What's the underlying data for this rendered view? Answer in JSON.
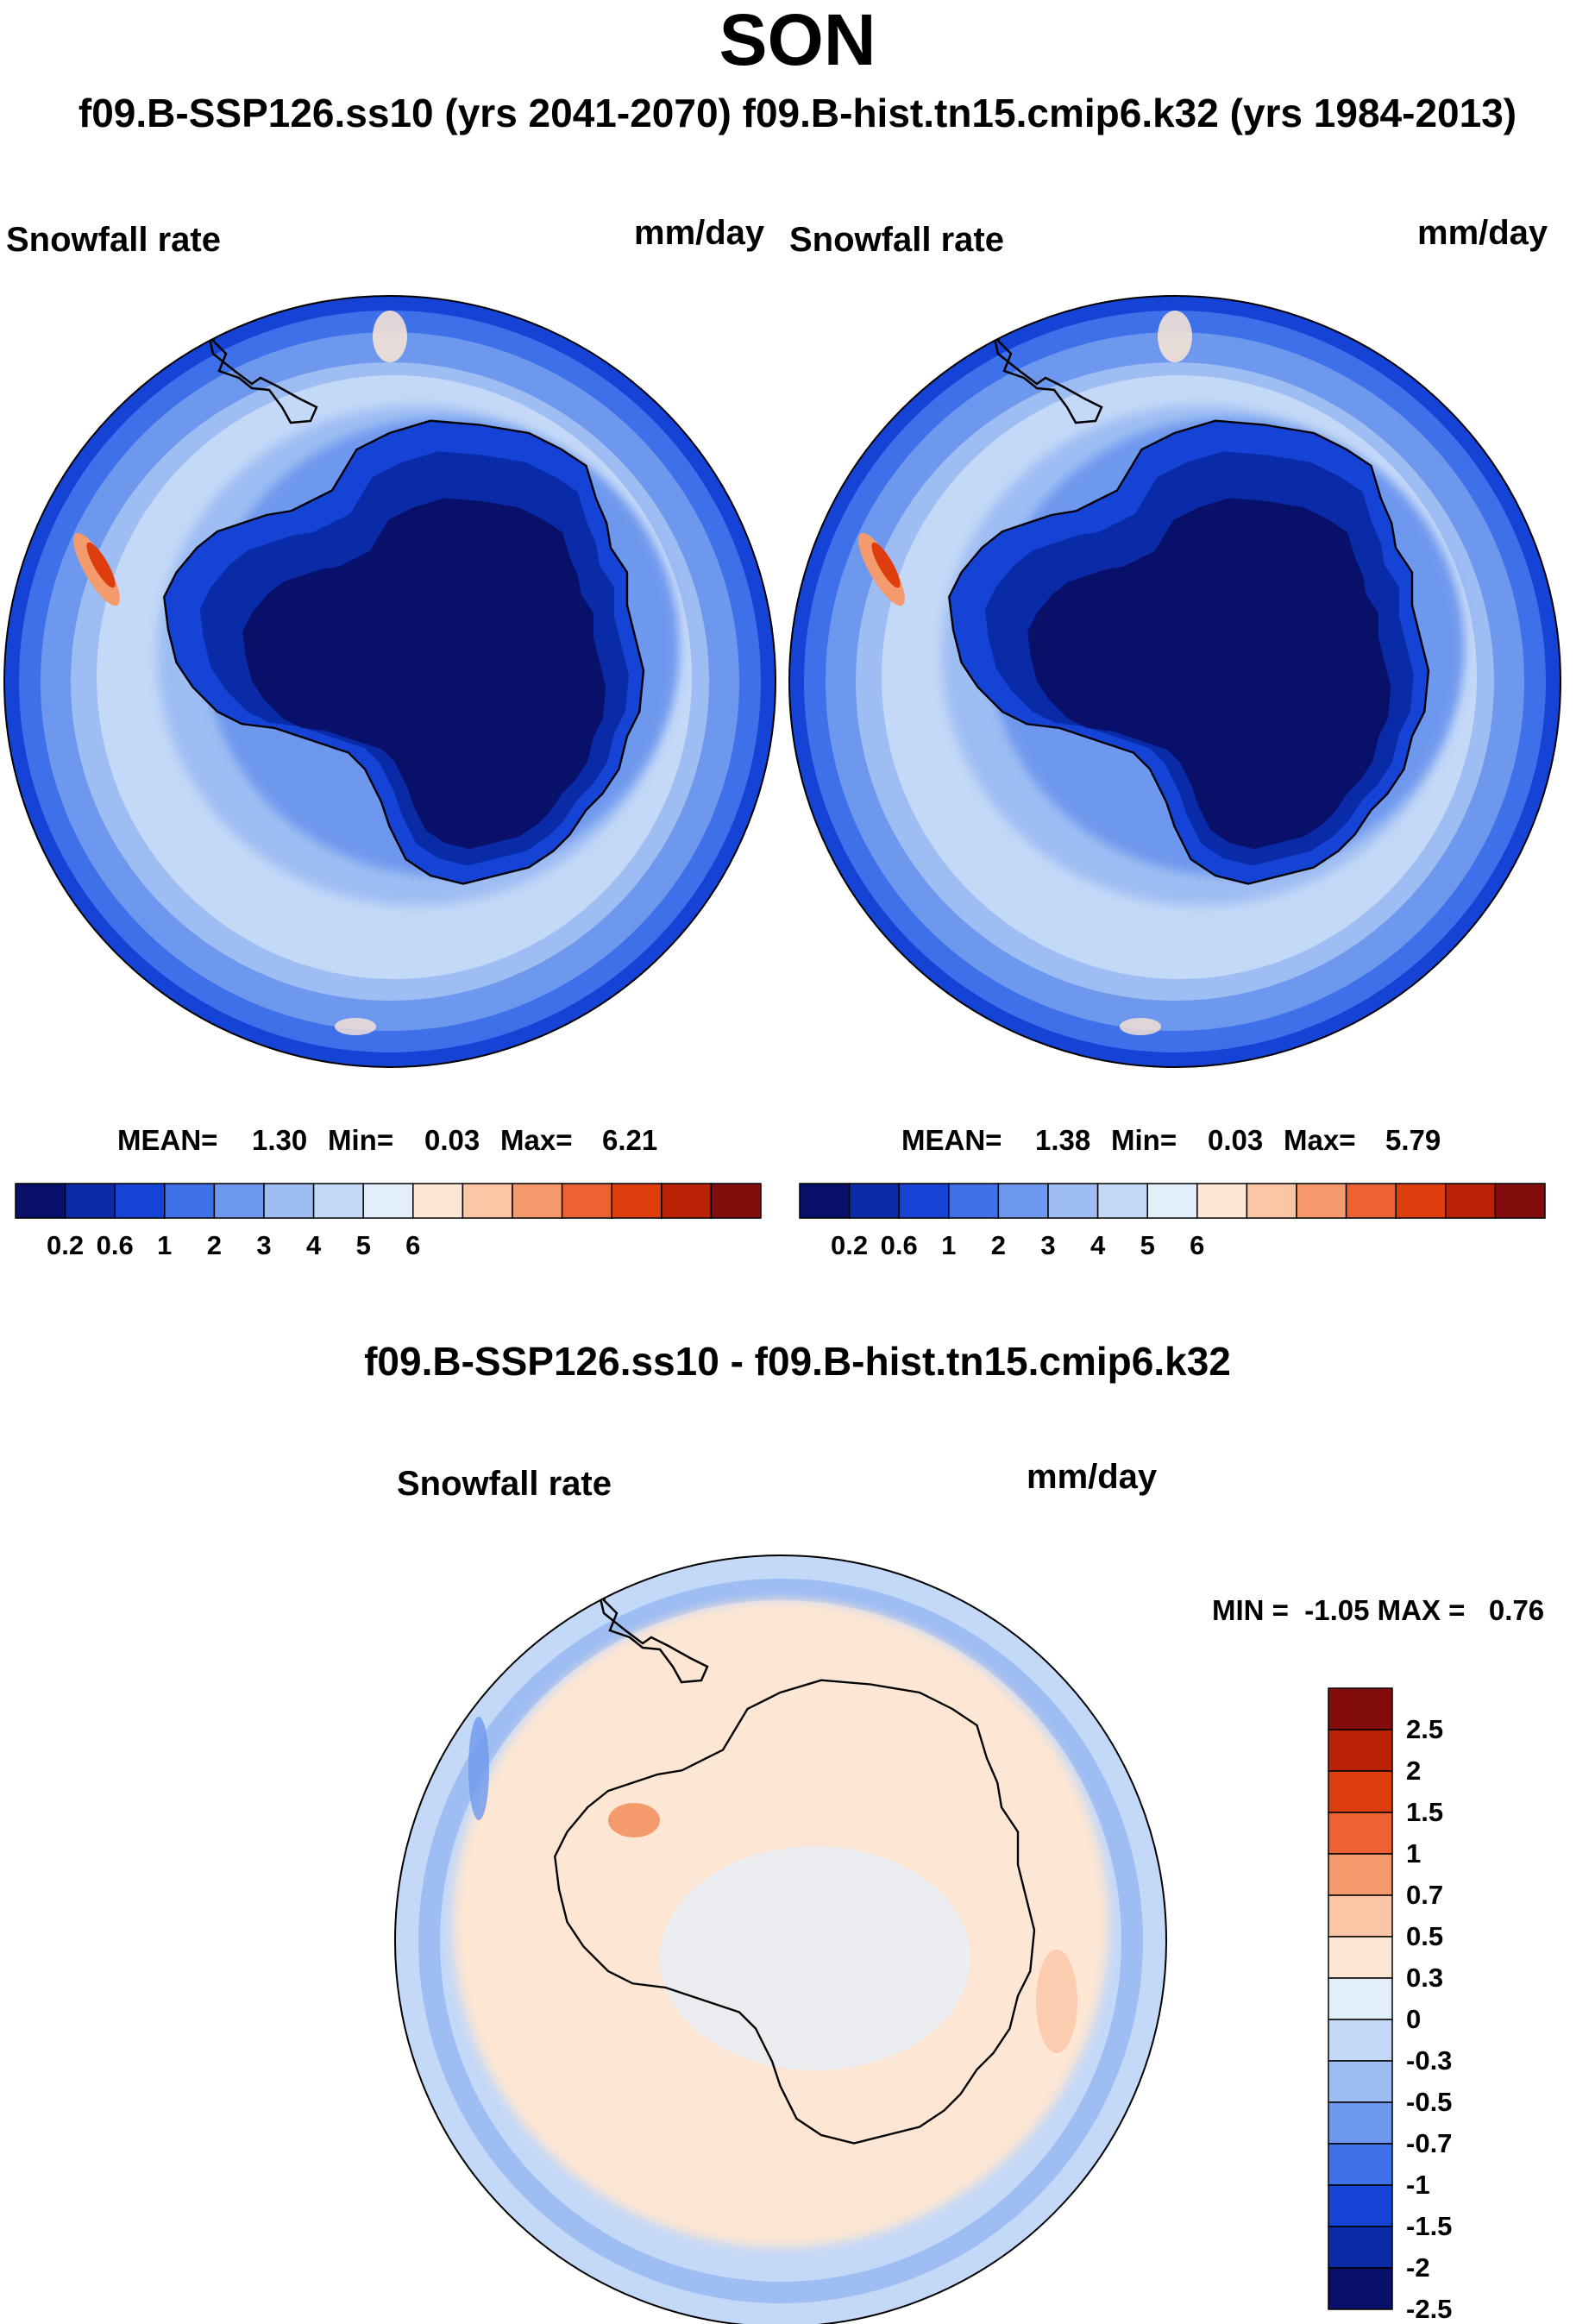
{
  "title": "SON",
  "subtitle": "f09.B-SSP126.ss10 (yrs 2041-2070)  f09.B-hist.tn15.cmip6.k32 (yrs 1984-2013)",
  "colors": {
    "absolute": [
      "#08106a",
      "#0a2ba8",
      "#1443d6",
      "#3e70ea",
      "#6e98ee",
      "#9ebdf3",
      "#c4d8f7",
      "#e3eefb",
      "#fde6d3",
      "#fbc5a6",
      "#f59a6d",
      "#ee6130",
      "#de3d0e",
      "#b92205",
      "#830d0d"
    ],
    "diff": [
      "#08106a",
      "#0a2ba8",
      "#1443d6",
      "#3e70ea",
      "#6e98ee",
      "#9ebdf3",
      "#c4d8f7",
      "#e3eefb",
      "#fde6d3",
      "#fbc5a6",
      "#f59a6d",
      "#ee6130",
      "#de3d0e",
      "#b92205",
      "#830d0d"
    ]
  },
  "panels": {
    "left": {
      "variable": "Snowfall rate",
      "units": "mm/day",
      "stats": {
        "mean_label": "MEAN=",
        "mean": "1.30",
        "min_label": "Min=",
        "min": "0.03",
        "max_label": "Max=",
        "max": "6.21"
      },
      "colorbar_ticks": [
        "0.2",
        "0.6",
        "1",
        "2",
        "3",
        "4",
        "5",
        "6"
      ]
    },
    "right": {
      "variable": "Snowfall rate",
      "units": "mm/day",
      "stats": {
        "mean_label": "MEAN=",
        "mean": "1.38",
        "min_label": "Min=",
        "min": "0.03",
        "max_label": "Max=",
        "max": "5.79"
      },
      "colorbar_ticks": [
        "0.2",
        "0.6",
        "1",
        "2",
        "3",
        "4",
        "5",
        "6"
      ]
    },
    "diff": {
      "title": "f09.B-SSP126.ss10 - f09.B-hist.tn15.cmip6.k32",
      "variable": "Snowfall rate",
      "units": "mm/day",
      "minmax": "MIN =  -1.05 MAX =   0.76",
      "colorbar_ticks": [
        "2.5",
        "2",
        "1.5",
        "1",
        "0.7",
        "0.5",
        "0.3",
        "0",
        "-0.3",
        "-0.5",
        "-0.7",
        "-1",
        "-1.5",
        "-2",
        "-2.5"
      ]
    }
  }
}
